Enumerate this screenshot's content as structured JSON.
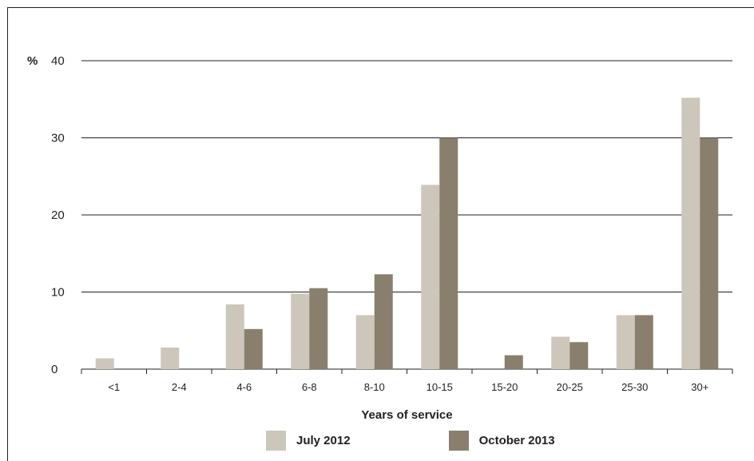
{
  "chart_data": {
    "type": "bar",
    "title": "",
    "ylabel": "%",
    "xlabel": "Years of service",
    "ylim": [
      0,
      40
    ],
    "yticks": [
      0,
      10,
      20,
      30,
      40
    ],
    "grid": true,
    "legend_position": "bottom",
    "categories": [
      "<1",
      "2-4",
      "4-6",
      "6-8",
      "8-10",
      "10-15",
      "15-20",
      "20-25",
      "25-30",
      "30+"
    ],
    "series": [
      {
        "name": "July 2012",
        "color": "#cdc6bb",
        "values": [
          1.4,
          2.8,
          8.4,
          9.8,
          7.0,
          23.9,
          0,
          4.2,
          7.0,
          35.2
        ]
      },
      {
        "name": "October 2013",
        "color": "#8a7f6d",
        "values": [
          0,
          0,
          5.2,
          10.5,
          12.3,
          30.0,
          1.8,
          3.5,
          7.0,
          30.0
        ]
      }
    ]
  }
}
